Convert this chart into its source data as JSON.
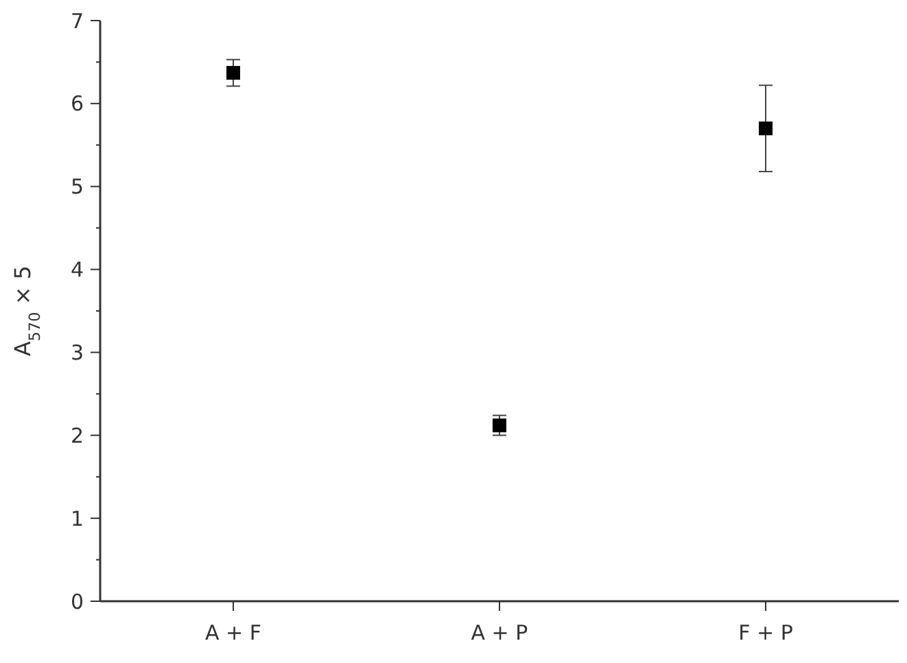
{
  "chart_data": {
    "type": "scatter",
    "ylabel": "A$_{570}$ × 5",
    "categories": [
      "A + F",
      "A + P",
      "F + P"
    ],
    "series": [
      {
        "color": "#000000",
        "values": [
          6.37,
          2.12,
          5.7
        ],
        "errors": [
          0.16,
          0.12,
          0.52
        ]
      }
    ],
    "ylim": [
      0,
      7
    ],
    "yticks": [
      0,
      1,
      2,
      3,
      4,
      5,
      6,
      7
    ],
    "marker": "square",
    "grid": false
  }
}
